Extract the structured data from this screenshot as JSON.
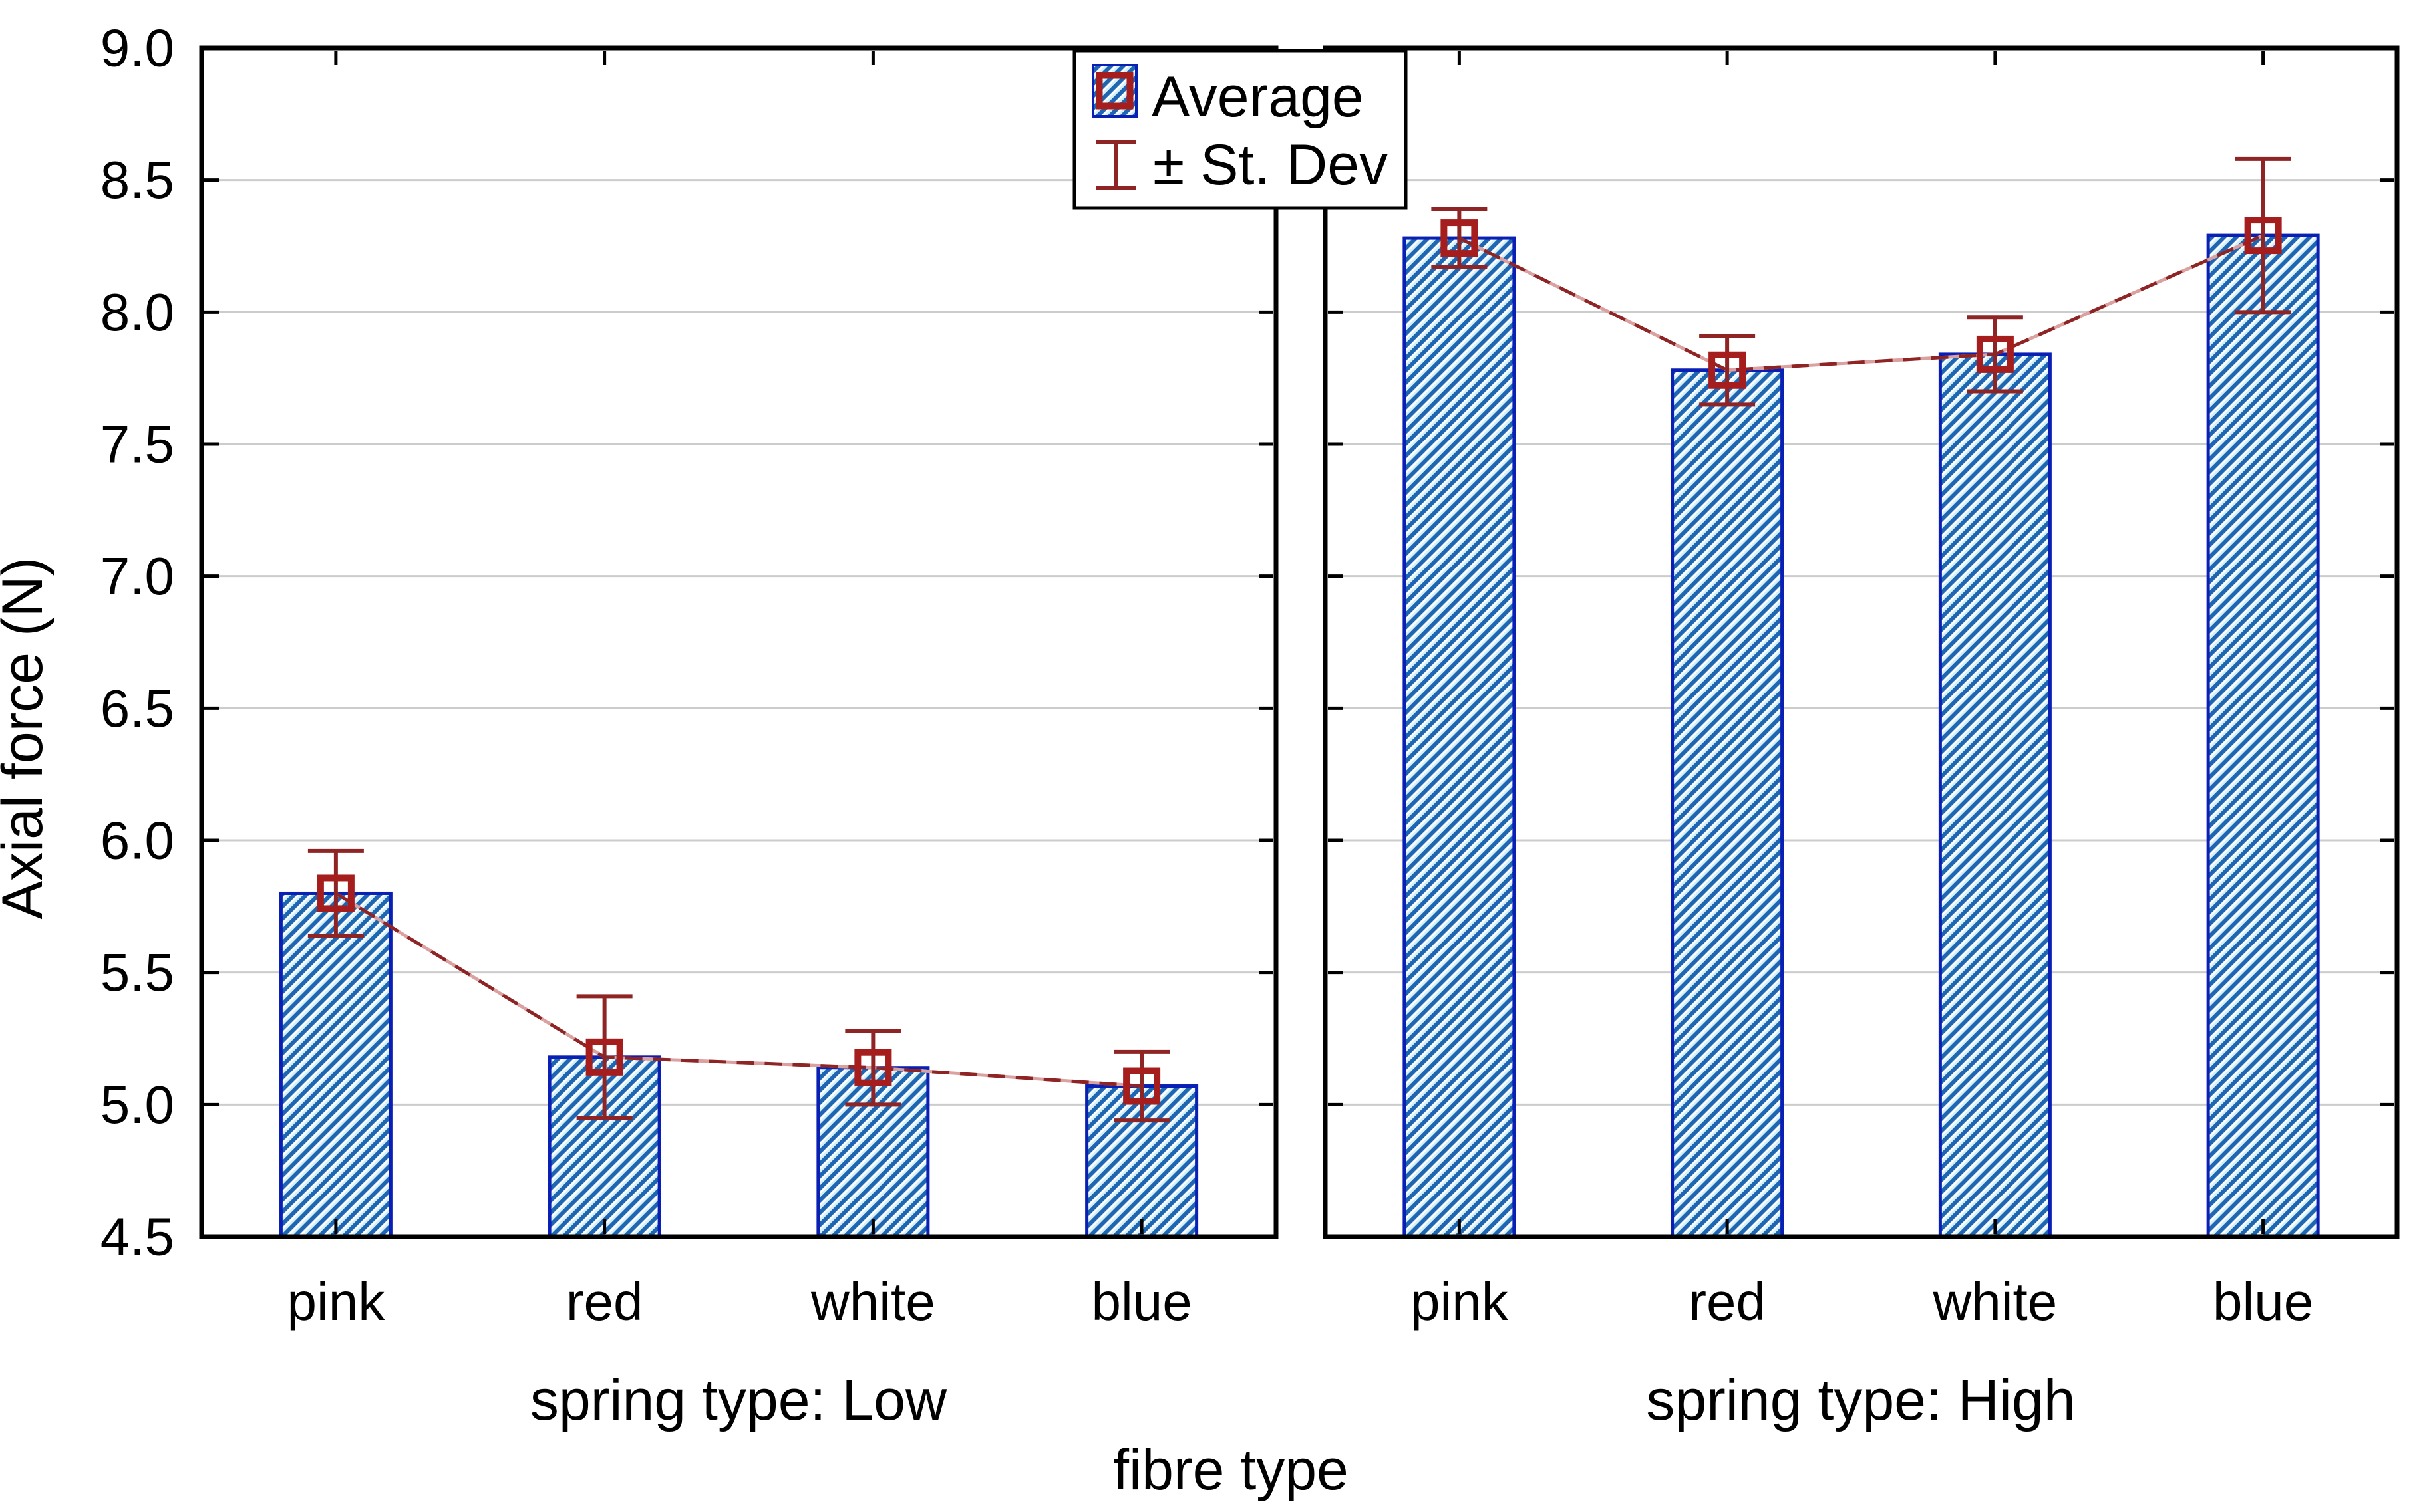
{
  "chart_data": {
    "type": "bar",
    "title": "",
    "ylabel": "Axial force (N)",
    "xlabel": "fibre type",
    "ylim": [
      4.5,
      9.0
    ],
    "ytick_step": 0.5,
    "yticks": [
      "4.5",
      "5.0",
      "5.5",
      "6.0",
      "6.5",
      "7.0",
      "7.5",
      "8.0",
      "8.5",
      "9.0"
    ],
    "grid": "horizontal-gridlines-on",
    "categories": [
      "pink",
      "red",
      "white",
      "blue"
    ],
    "panels": [
      {
        "title": "spring type: Low",
        "series": {
          "average": [
            5.8,
            5.18,
            5.14,
            5.07
          ],
          "std_dev": [
            0.16,
            0.23,
            0.14,
            0.13
          ]
        }
      },
      {
        "title": "spring type: High",
        "series": {
          "average": [
            8.28,
            7.78,
            7.84,
            8.29
          ],
          "std_dev": [
            0.11,
            0.13,
            0.14,
            0.29
          ]
        }
      }
    ],
    "legend": {
      "position": "top-center",
      "items": [
        {
          "label": "Average",
          "swatch": "hatched-bar-with-square-marker"
        },
        {
          "label": "± St. Dev",
          "swatch": "error-bar-i-beam"
        }
      ]
    },
    "colors": {
      "bar_hatch": "#1e65b2",
      "bar_hatch_bg": "#ffffff",
      "bar_hatch_alt": "#d4f1fb",
      "bar_border": "#0a20b4",
      "marker": "#a51d1d",
      "error_bar": "#8e2424",
      "mean_line": "#8e2424",
      "mean_line_light": "#dba0a0",
      "grid": "#cccccc",
      "axis": "#000000",
      "text": "#000000",
      "background": "#ffffff"
    }
  }
}
